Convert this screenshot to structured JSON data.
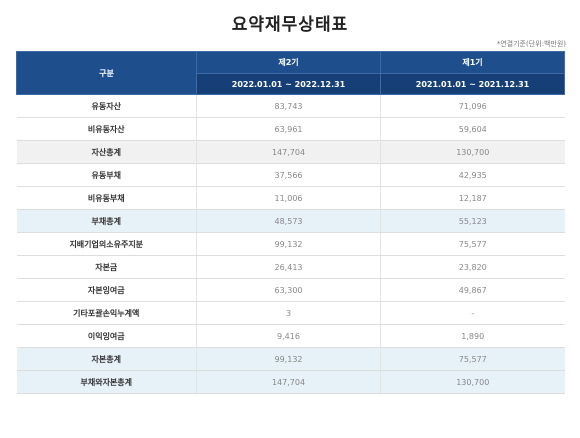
{
  "title": "요약재무상태표",
  "note": "*연결기준(단위:백만원)",
  "header": {
    "gubun": "구분",
    "periods": [
      {
        "label": "제2기",
        "range": "2022.01.01 ~ 2022.12.31"
      },
      {
        "label": "제1기",
        "range": "2021.01.01 ~ 2021.12.31"
      }
    ]
  },
  "rows": [
    {
      "label": "유동자산",
      "p2": "83,743",
      "p1": "71,096",
      "style": "white"
    },
    {
      "label": "비유동자산",
      "p2": "63,961",
      "p1": "59,604",
      "style": "white"
    },
    {
      "label": "자산총계",
      "p2": "147,704",
      "p1": "130,700",
      "style": "gray"
    },
    {
      "label": "유동부채",
      "p2": "37,566",
      "p1": "42,935",
      "style": "white"
    },
    {
      "label": "비유동부채",
      "p2": "11,006",
      "p1": "12,187",
      "style": "white"
    },
    {
      "label": "부채총계",
      "p2": "48,573",
      "p1": "55,123",
      "style": "blue"
    },
    {
      "label": "지배기업의소유주지분",
      "p2": "99,132",
      "p1": "75,577",
      "style": "white"
    },
    {
      "label": "자본금",
      "p2": "26,413",
      "p1": "23,820",
      "style": "white"
    },
    {
      "label": "자본잉여금",
      "p2": "63,300",
      "p1": "49,867",
      "style": "white"
    },
    {
      "label": "기타포괄손익누계액",
      "p2": "3",
      "p1": "-",
      "style": "white"
    },
    {
      "label": "이익잉여금",
      "p2": "9,416",
      "p1": "1,890",
      "style": "white"
    },
    {
      "label": "자본총계",
      "p2": "99,132",
      "p1": "75,577",
      "style": "blue"
    },
    {
      "label": "부채와자본총계",
      "p2": "147,704",
      "p1": "130,700",
      "style": "blue"
    }
  ]
}
